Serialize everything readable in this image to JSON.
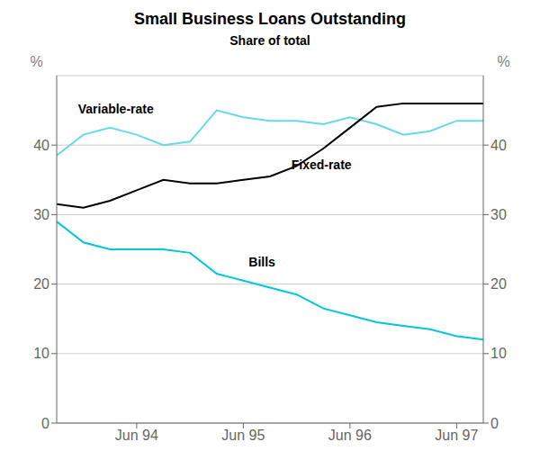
{
  "chart_data": {
    "type": "line",
    "title": "Small Business Loans Outstanding",
    "subtitle": "Share of total",
    "x": [
      0,
      1,
      2,
      3,
      4,
      5,
      6,
      7,
      8,
      9,
      10,
      11,
      12,
      13,
      14,
      15,
      16
    ],
    "xlim": [
      0,
      16
    ],
    "xticks": [
      {
        "value": 3,
        "label": "Jun 94"
      },
      {
        "value": 7,
        "label": "Jun 95"
      },
      {
        "value": 11,
        "label": "Jun 96"
      },
      {
        "value": 15,
        "label": "Jun 97"
      }
    ],
    "ylim": [
      0,
      50
    ],
    "yticks": [
      0,
      10,
      20,
      30,
      40
    ],
    "y2lim": [
      0,
      50
    ],
    "y2ticks": [
      0,
      10,
      20,
      30,
      40
    ],
    "y_label": "%",
    "y2_label": "%",
    "grid": true,
    "series": [
      {
        "color": "#66d9e8",
        "values": [
          38.5,
          41.5,
          42.5,
          41.5,
          40.0,
          40.5,
          45.0,
          44.0,
          43.5,
          43.5,
          43.0,
          44.0,
          43.0,
          41.5,
          42.0,
          43.5,
          43.5
        ]
      },
      {
        "color": "#000000",
        "values": [
          31.5,
          31.0,
          32.0,
          33.5,
          35.0,
          34.5,
          34.5,
          35.0,
          35.5,
          37.0,
          39.5,
          42.5,
          45.5,
          46.0,
          46.0,
          46.0,
          46.0
        ]
      },
      {
        "color": "#00c8d8",
        "values": [
          29.0,
          26.0,
          25.0,
          25.0,
          25.0,
          24.5,
          21.5,
          20.5,
          19.5,
          18.5,
          16.5,
          15.5,
          14.5,
          14.0,
          13.5,
          12.5,
          12.0
        ]
      }
    ],
    "annotations": [
      {
        "text": "Variable-rate",
        "x": 0.8,
        "y": 44.5
      },
      {
        "text": "Fixed-rate",
        "x": 8.8,
        "y": 36.5
      },
      {
        "text": "Bills",
        "x": 7.2,
        "y": 22.5
      }
    ]
  }
}
